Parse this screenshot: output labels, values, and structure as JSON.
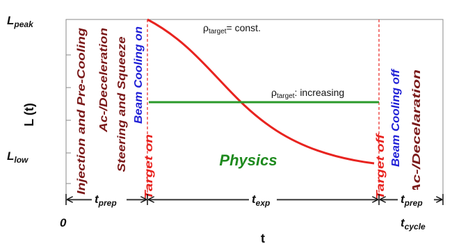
{
  "figure": {
    "y_axis_label": "L (t)",
    "x_axis_label": "t",
    "y_ticks": {
      "peak": {
        "main": "L",
        "sub": "peak"
      },
      "low": {
        "main": "L",
        "sub": "low"
      }
    },
    "x_ticks": {
      "origin": "0",
      "cycle": {
        "main": "t",
        "sub": "cycle"
      }
    },
    "phase_labels": {
      "injection": "Injection and Pre-Cooling",
      "ac_decel_1": "Ac-/Deceleration",
      "steering": "Steering and Squeeze",
      "beam_cooling_on": "Beam Cooling on",
      "target_on": "Target on",
      "target_off": "Target off",
      "beam_cooling_off": "Beam Cooling off",
      "ac_decel_2": "Ac-/Decelaration"
    },
    "curve_labels": {
      "const": {
        "symbol": "ρ",
        "sub": "target",
        "text": "= const."
      },
      "increasing": {
        "symbol": "ρ",
        "sub": "target",
        "text": ": increasing"
      }
    },
    "physics_label": "Physics",
    "intervals": {
      "prep_left": {
        "main": "t",
        "sub": "prep"
      },
      "exp": {
        "main": "t",
        "sub": "exp"
      },
      "prep_right": {
        "main": "t",
        "sub": "prep"
      }
    },
    "colors": {
      "red": "#e8231f",
      "green": "#2a9a2a",
      "blue": "#1f1fd6",
      "dark_red": "#7a1818",
      "green_text": "#1e8a1e"
    }
  }
}
